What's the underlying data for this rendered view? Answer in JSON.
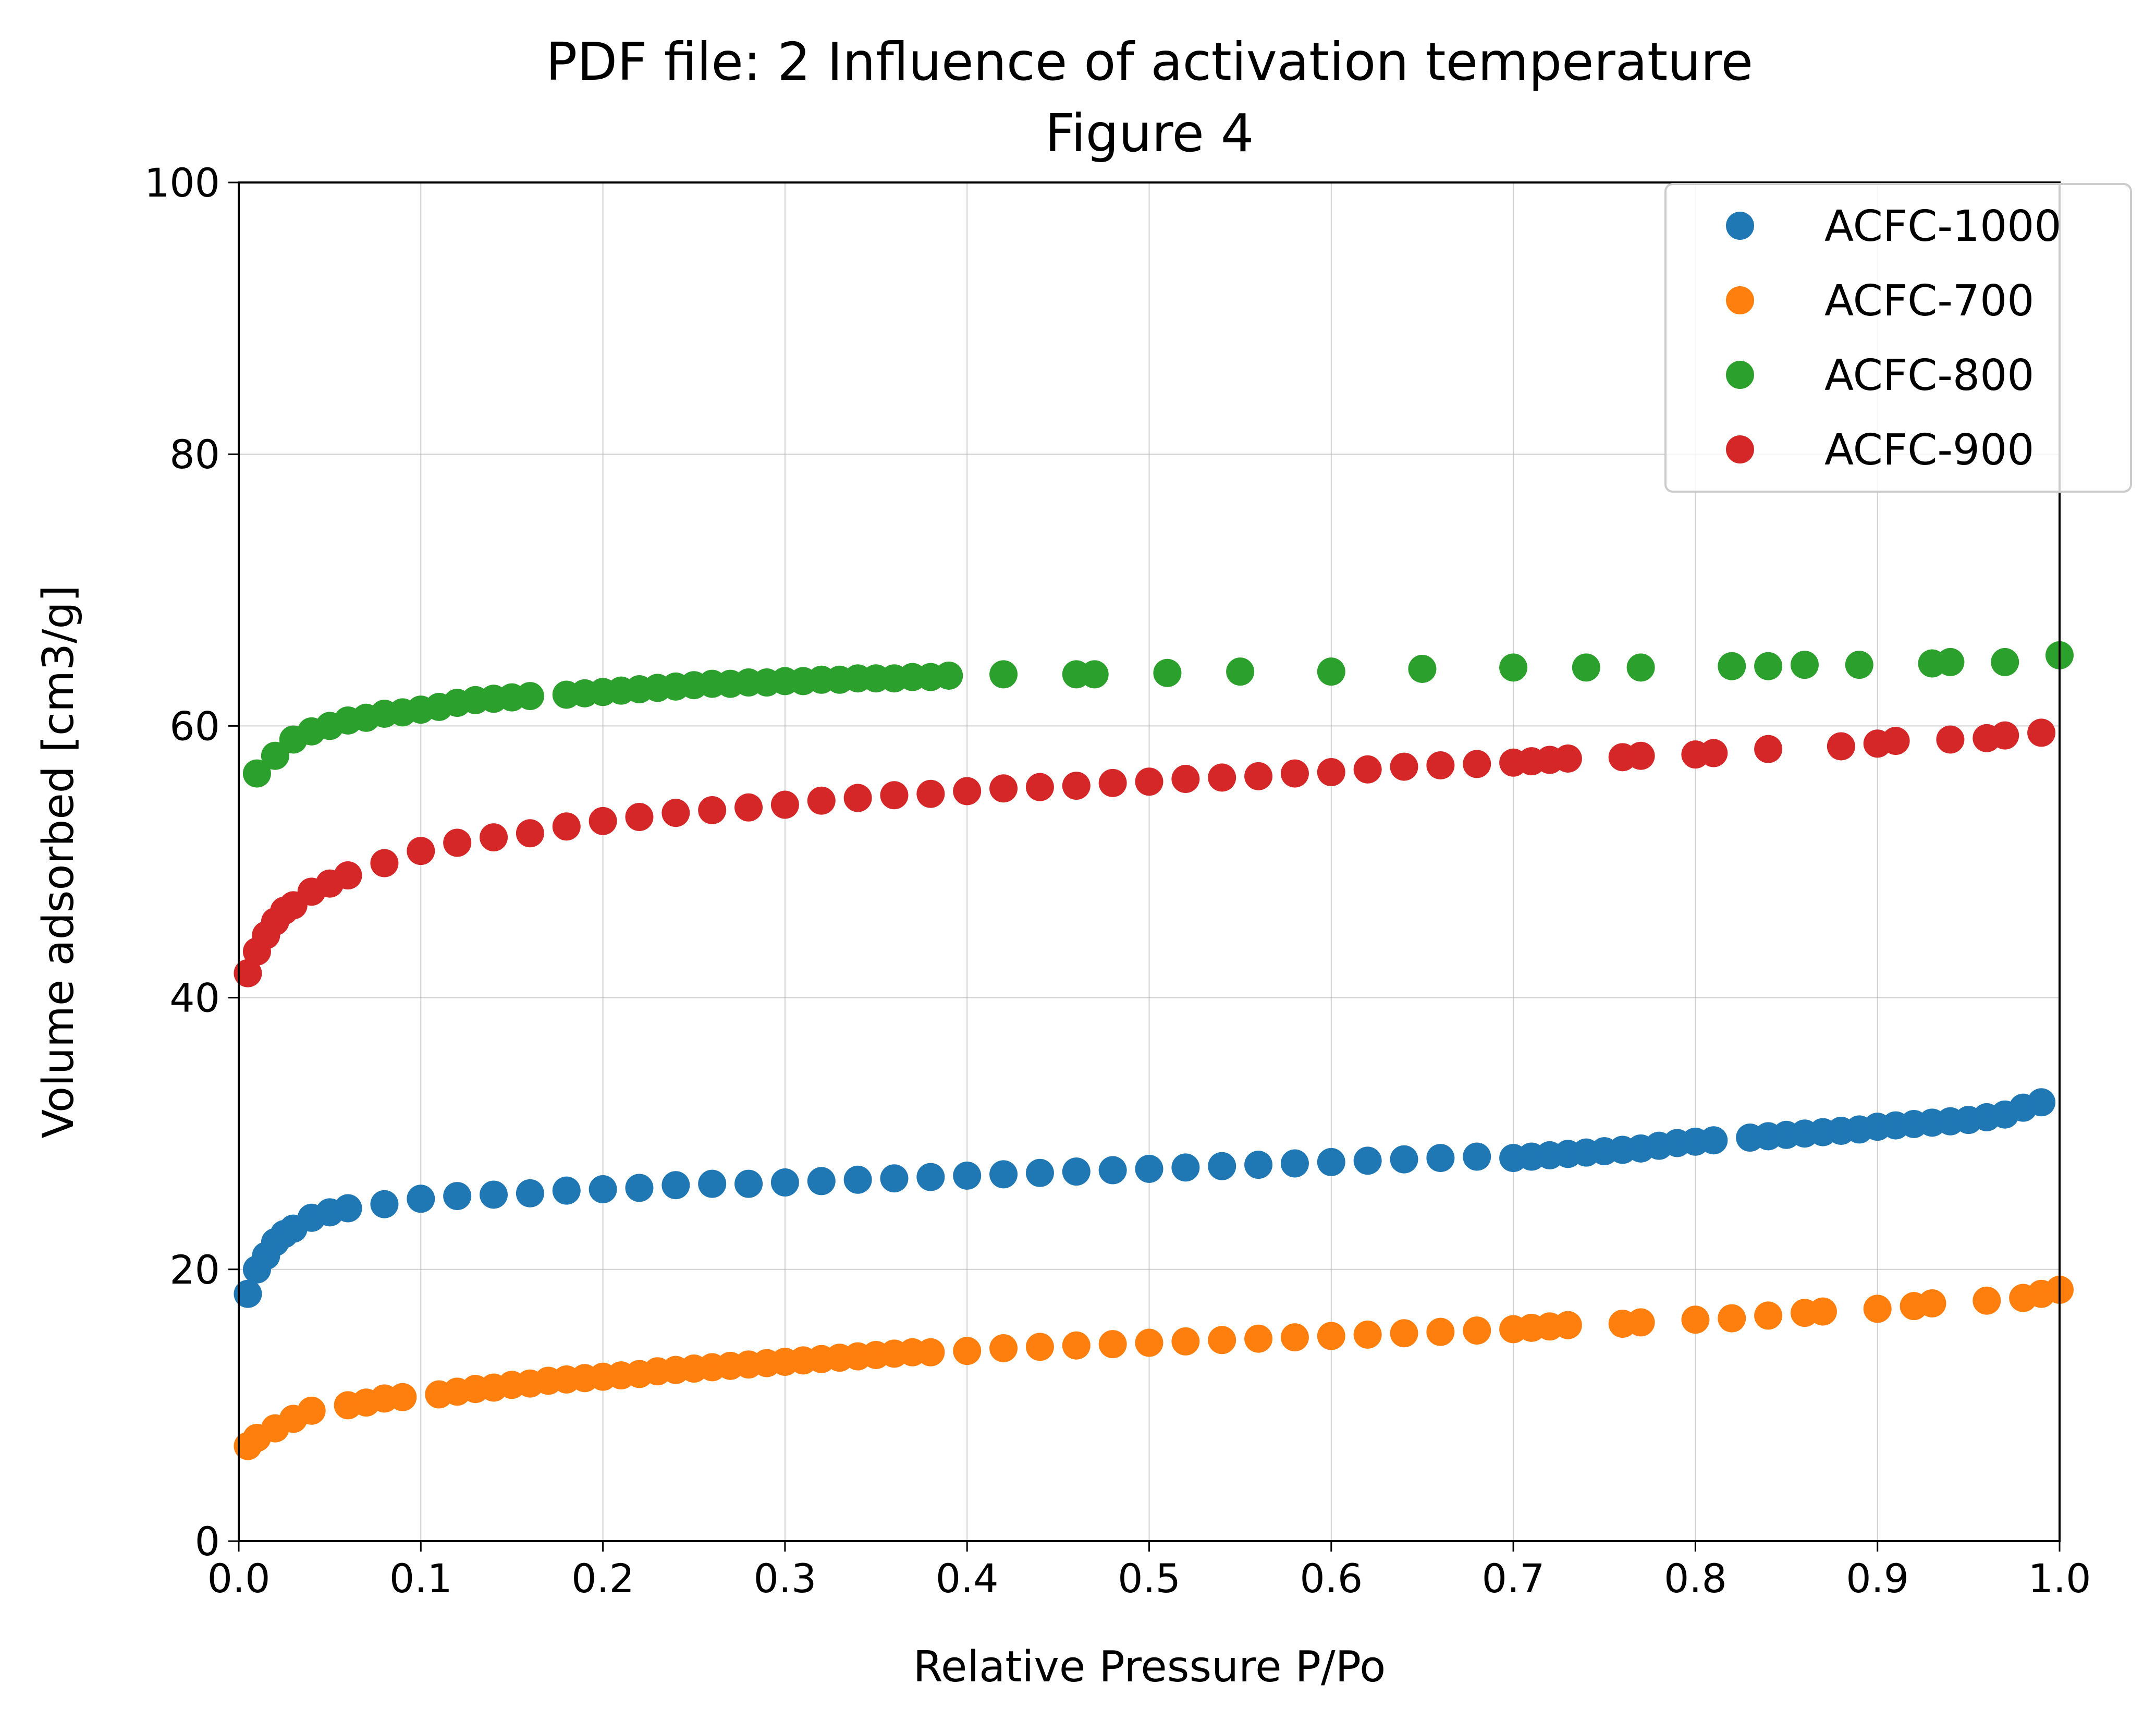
{
  "chart_data": {
    "type": "scatter",
    "title": "PDF file: 2 Influence of activation temperature",
    "subtitle": "Figure 4",
    "xlabel": "Relative Pressure P/Po",
    "ylabel": "Volume adsorbed [cm3/g]",
    "xlim": [
      0,
      1
    ],
    "ylim": [
      0,
      100
    ],
    "x_ticks": [
      "0.0",
      "0.1",
      "0.2",
      "0.3",
      "0.4",
      "0.5",
      "0.6",
      "0.7",
      "0.8",
      "0.9",
      "1.0"
    ],
    "y_ticks": [
      "0",
      "20",
      "40",
      "60",
      "80",
      "100"
    ],
    "grid": true,
    "legend_position": "top-right",
    "series": [
      {
        "name": "ACFC-1000",
        "color": "#1f77b4",
        "x": [
          0.005,
          0.01,
          0.015,
          0.02,
          0.025,
          0.03,
          0.04,
          0.05,
          0.06,
          0.08,
          0.1,
          0.12,
          0.14,
          0.16,
          0.18,
          0.2,
          0.22,
          0.24,
          0.26,
          0.28,
          0.3,
          0.32,
          0.34,
          0.36,
          0.38,
          0.4,
          0.42,
          0.44,
          0.46,
          0.48,
          0.5,
          0.52,
          0.54,
          0.56,
          0.58,
          0.6,
          0.62,
          0.64,
          0.66,
          0.68,
          0.7,
          0.71,
          0.72,
          0.73,
          0.74,
          0.75,
          0.76,
          0.77,
          0.78,
          0.79,
          0.8,
          0.81,
          0.83,
          0.84,
          0.85,
          0.86,
          0.87,
          0.88,
          0.89,
          0.9,
          0.91,
          0.92,
          0.93,
          0.94,
          0.95,
          0.96,
          0.97,
          0.98,
          0.99
        ],
        "y": [
          18.2,
          20.0,
          21.0,
          22.0,
          22.6,
          23.0,
          23.8,
          24.2,
          24.5,
          24.8,
          25.2,
          25.4,
          25.5,
          25.6,
          25.8,
          25.9,
          26.0,
          26.2,
          26.3,
          26.3,
          26.4,
          26.5,
          26.6,
          26.7,
          26.8,
          26.9,
          27.0,
          27.1,
          27.2,
          27.3,
          27.4,
          27.5,
          27.6,
          27.7,
          27.8,
          27.9,
          28.0,
          28.1,
          28.2,
          28.3,
          28.2,
          28.3,
          28.4,
          28.5,
          28.6,
          28.7,
          28.8,
          28.9,
          29.1,
          29.3,
          29.4,
          29.5,
          29.7,
          29.8,
          29.9,
          30.0,
          30.1,
          30.2,
          30.3,
          30.5,
          30.6,
          30.7,
          30.8,
          30.9,
          31.0,
          31.2,
          31.4,
          31.9,
          32.3
        ]
      },
      {
        "name": "ACFC-700",
        "color": "#ff7f0e",
        "x": [
          0.005,
          0.01,
          0.02,
          0.03,
          0.04,
          0.06,
          0.07,
          0.08,
          0.09,
          0.11,
          0.12,
          0.13,
          0.14,
          0.15,
          0.16,
          0.17,
          0.18,
          0.19,
          0.2,
          0.21,
          0.22,
          0.23,
          0.24,
          0.25,
          0.26,
          0.27,
          0.28,
          0.29,
          0.3,
          0.31,
          0.32,
          0.33,
          0.34,
          0.35,
          0.36,
          0.37,
          0.38,
          0.4,
          0.42,
          0.44,
          0.46,
          0.48,
          0.5,
          0.52,
          0.54,
          0.56,
          0.58,
          0.6,
          0.62,
          0.64,
          0.66,
          0.68,
          0.7,
          0.71,
          0.72,
          0.73,
          0.76,
          0.77,
          0.8,
          0.82,
          0.84,
          0.86,
          0.87,
          0.9,
          0.92,
          0.93,
          0.96,
          0.98,
          0.99,
          1.0
        ],
        "y": [
          7.0,
          7.6,
          8.3,
          9.0,
          9.6,
          10.0,
          10.2,
          10.5,
          10.6,
          10.8,
          11.0,
          11.2,
          11.3,
          11.5,
          11.6,
          11.8,
          11.9,
          12.0,
          12.1,
          12.2,
          12.3,
          12.5,
          12.6,
          12.7,
          12.8,
          12.9,
          13.0,
          13.1,
          13.2,
          13.3,
          13.4,
          13.5,
          13.6,
          13.7,
          13.8,
          13.9,
          13.9,
          14.0,
          14.2,
          14.3,
          14.4,
          14.5,
          14.6,
          14.7,
          14.8,
          14.9,
          15.0,
          15.1,
          15.2,
          15.3,
          15.4,
          15.5,
          15.6,
          15.7,
          15.8,
          15.9,
          16.0,
          16.1,
          16.3,
          16.4,
          16.6,
          16.8,
          16.9,
          17.1,
          17.3,
          17.5,
          17.7,
          17.9,
          18.2,
          18.5
        ]
      },
      {
        "name": "ACFC-800",
        "color": "#2ca02c",
        "x": [
          0.01,
          0.02,
          0.03,
          0.04,
          0.05,
          0.06,
          0.07,
          0.08,
          0.09,
          0.1,
          0.11,
          0.12,
          0.13,
          0.14,
          0.15,
          0.16,
          0.18,
          0.19,
          0.2,
          0.21,
          0.22,
          0.23,
          0.24,
          0.25,
          0.26,
          0.27,
          0.28,
          0.29,
          0.3,
          0.31,
          0.32,
          0.33,
          0.34,
          0.35,
          0.36,
          0.37,
          0.38,
          0.39,
          0.42,
          0.46,
          0.47,
          0.51,
          0.55,
          0.6,
          0.65,
          0.7,
          0.74,
          0.77,
          0.82,
          0.84,
          0.86,
          0.89,
          0.93,
          0.94,
          0.97,
          1.0
        ],
        "y": [
          56.5,
          57.8,
          59.0,
          59.6,
          60.0,
          60.4,
          60.6,
          60.9,
          61.0,
          61.2,
          61.4,
          61.7,
          61.9,
          62.0,
          62.1,
          62.2,
          62.3,
          62.4,
          62.5,
          62.6,
          62.7,
          62.8,
          62.9,
          63.0,
          63.1,
          63.1,
          63.2,
          63.2,
          63.3,
          63.3,
          63.4,
          63.4,
          63.5,
          63.5,
          63.5,
          63.6,
          63.6,
          63.7,
          63.8,
          63.8,
          63.8,
          63.9,
          64.0,
          64.0,
          64.2,
          64.3,
          64.3,
          64.3,
          64.4,
          64.4,
          64.5,
          64.5,
          64.6,
          64.7,
          64.7,
          65.2
        ]
      },
      {
        "name": "ACFC-900",
        "color": "#d62728",
        "x": [
          0.005,
          0.01,
          0.015,
          0.02,
          0.025,
          0.03,
          0.04,
          0.05,
          0.06,
          0.08,
          0.1,
          0.12,
          0.14,
          0.16,
          0.18,
          0.2,
          0.22,
          0.24,
          0.26,
          0.28,
          0.3,
          0.32,
          0.34,
          0.36,
          0.38,
          0.4,
          0.42,
          0.44,
          0.46,
          0.48,
          0.5,
          0.52,
          0.54,
          0.56,
          0.58,
          0.6,
          0.62,
          0.64,
          0.66,
          0.68,
          0.7,
          0.71,
          0.72,
          0.73,
          0.76,
          0.77,
          0.8,
          0.81,
          0.84,
          0.88,
          0.9,
          0.91,
          0.94,
          0.96,
          0.97,
          0.99
        ],
        "y": [
          41.8,
          43.4,
          44.6,
          45.6,
          46.4,
          46.8,
          47.8,
          48.4,
          49.0,
          49.9,
          50.8,
          51.4,
          51.8,
          52.1,
          52.6,
          53.0,
          53.3,
          53.6,
          53.8,
          54.0,
          54.2,
          54.5,
          54.7,
          54.9,
          55.0,
          55.2,
          55.4,
          55.5,
          55.6,
          55.8,
          55.9,
          56.1,
          56.2,
          56.3,
          56.5,
          56.6,
          56.8,
          57.0,
          57.1,
          57.2,
          57.3,
          57.4,
          57.5,
          57.6,
          57.7,
          57.8,
          57.9,
          58.0,
          58.3,
          58.5,
          58.7,
          58.9,
          59.0,
          59.1,
          59.3,
          59.5
        ]
      }
    ]
  }
}
